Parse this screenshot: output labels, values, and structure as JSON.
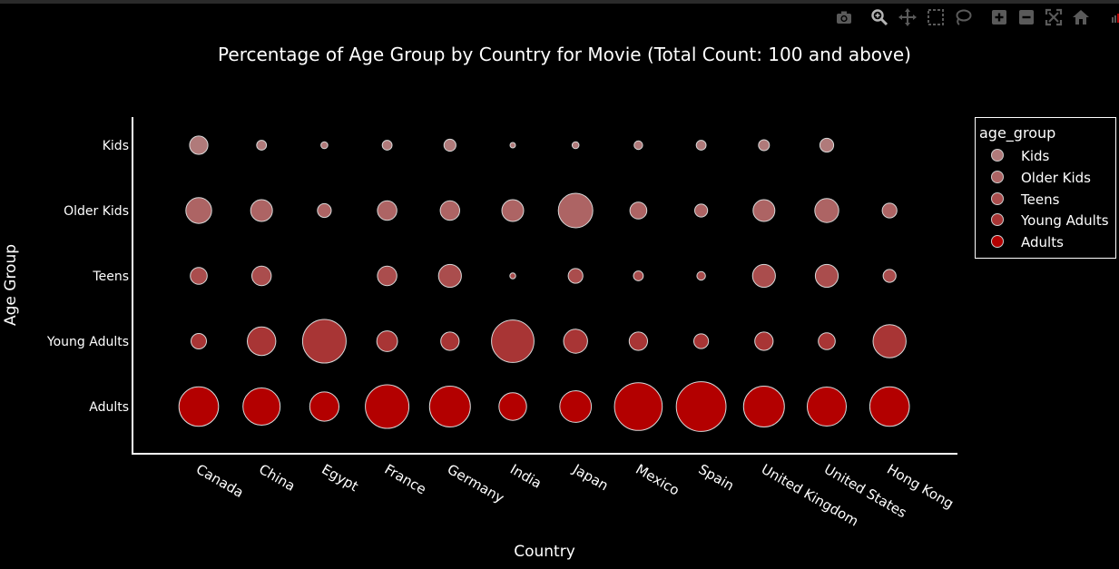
{
  "modebar": {
    "icons": [
      "camera-icon",
      "zoom-icon",
      "pan-icon",
      "box-select-icon",
      "lasso-icon",
      "zoom-in-icon",
      "zoom-out-icon",
      "autoscale-icon",
      "home-icon"
    ]
  },
  "legend": {
    "title": "age_group",
    "items": [
      {
        "label": "Kids",
        "color": "#b07a7a"
      },
      {
        "label": "Older Kids",
        "color": "#ad6464"
      },
      {
        "label": "Teens",
        "color": "#aa4d4d"
      },
      {
        "label": "Young Adults",
        "color": "#a83535"
      },
      {
        "label": "Adults",
        "color": "#b30000"
      }
    ]
  },
  "chart_data": {
    "type": "scatter",
    "title": "Percentage of Age Group by Country for Movie (Total Count: 100 and above)",
    "xlabel": "Country",
    "ylabel": "Age Group",
    "categories": [
      "Canada",
      "China",
      "Egypt",
      "France",
      "Germany",
      "India",
      "Japan",
      "Mexico",
      "Spain",
      "United Kingdom",
      "United States",
      "Hong Kong"
    ],
    "y_categories": [
      "Kids",
      "Older Kids",
      "Teens",
      "Young Adults",
      "Adults"
    ],
    "size_metric": "percentage",
    "series": [
      {
        "name": "Kids",
        "color": "#b07a7a",
        "values": [
          7,
          2,
          1,
          2,
          3,
          0.5,
          1,
          1.5,
          2,
          2.5,
          4,
          null
        ]
      },
      {
        "name": "Older Kids",
        "color": "#ad6464",
        "values": [
          14,
          10,
          4,
          8,
          8,
          10,
          25,
          6,
          3.5,
          10,
          12,
          4.5
        ]
      },
      {
        "name": "Teens",
        "color": "#aa4d4d",
        "values": [
          6,
          8,
          null,
          8,
          11,
          0.7,
          4.5,
          2,
          1.5,
          11,
          11,
          3.5
        ]
      },
      {
        "name": "Young Adults",
        "color": "#a83535",
        "values": [
          5,
          17,
          40,
          9,
          7,
          38,
          12,
          7,
          4.5,
          7,
          6,
          23
        ]
      },
      {
        "name": "Adults",
        "color": "#b30000",
        "values": [
          33,
          29,
          18,
          40,
          35,
          16,
          21,
          48,
          52,
          35,
          32,
          33
        ]
      }
    ],
    "grid": false,
    "legend_position": "right"
  }
}
